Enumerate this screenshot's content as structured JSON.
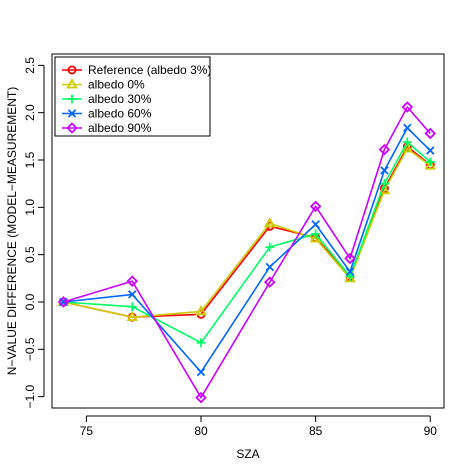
{
  "chart_data": {
    "type": "line",
    "title": "",
    "xlabel": "SZA",
    "ylabel": "N−VALUE DIFFERENCE (MODEL−MEASUREMENT)",
    "xlim": [
      73.5,
      90.6
    ],
    "ylim": [
      -1.12,
      2.62
    ],
    "xticks": [
      75,
      80,
      85,
      90
    ],
    "xtick_labels": [
      "75",
      "80",
      "85",
      "90"
    ],
    "yticks": [
      -1.0,
      -0.5,
      0.0,
      0.5,
      1.0,
      1.5,
      2.0,
      2.5
    ],
    "ytick_labels": [
      "−1.0",
      "−0.5",
      "0.0",
      "0.5",
      "1.0",
      "1.5",
      "2.0",
      "2.5"
    ],
    "grid": false,
    "legend_position": "top-left",
    "x": [
      74,
      77,
      80,
      83,
      85,
      86.5,
      88,
      89,
      90
    ],
    "series": [
      {
        "name": "Reference (albedo 3%)",
        "color": "#ff0000",
        "marker": "circle",
        "values": [
          0.0,
          -0.16,
          -0.13,
          0.8,
          0.68,
          0.27,
          1.2,
          1.64,
          1.45
        ]
      },
      {
        "name": "albedo 0%",
        "color": "#cccc00",
        "marker": "triangle",
        "values": [
          0.0,
          -0.16,
          -0.1,
          0.83,
          0.67,
          0.25,
          1.18,
          1.62,
          1.44
        ]
      },
      {
        "name": "albedo 30%",
        "color": "#00ff66",
        "marker": "plus",
        "values": [
          0.0,
          -0.05,
          -0.43,
          0.58,
          0.72,
          0.27,
          1.25,
          1.69,
          1.48
        ]
      },
      {
        "name": "albedo 60%",
        "color": "#0066ff",
        "marker": "cross",
        "values": [
          0.0,
          0.08,
          -0.74,
          0.37,
          0.82,
          0.32,
          1.39,
          1.84,
          1.6
        ]
      },
      {
        "name": "albedo 90%",
        "color": "#cc00ff",
        "marker": "diamond",
        "values": [
          0.0,
          0.22,
          -1.01,
          0.21,
          1.01,
          0.46,
          1.61,
          2.06,
          1.78
        ]
      }
    ]
  }
}
